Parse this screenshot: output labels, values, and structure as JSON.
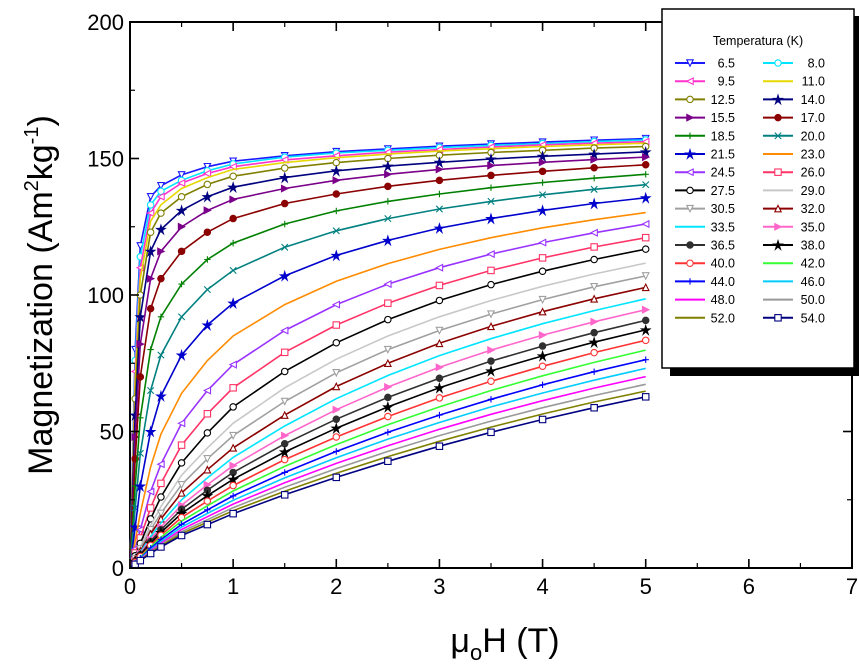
{
  "chart_data": {
    "type": "line",
    "title": "",
    "xlabel": {
      "main": "μ",
      "sub": "o",
      "rest": "H (T)"
    },
    "ylabel": {
      "main": "Magnetization (Am",
      "sup1": "2",
      "mid": "kg",
      "sup2": "-1",
      "end": ")"
    },
    "xlim": [
      0,
      7
    ],
    "ylim": [
      0,
      200
    ],
    "x_ticks": [
      "0",
      "1",
      "2",
      "3",
      "4",
      "5",
      "6",
      "7"
    ],
    "y_ticks": [
      "0",
      "50",
      "100",
      "150",
      "200"
    ],
    "grid": false,
    "legend": {
      "title": "Temperatura (K)",
      "placement": "top-right"
    },
    "x": [
      0,
      0.05,
      0.1,
      0.2,
      0.3,
      0.5,
      0.75,
      1,
      1.5,
      2,
      2.5,
      3,
      3.5,
      4,
      4.5,
      5
    ],
    "series": [
      {
        "name": "6.5",
        "color": "#1a1aff",
        "marker": "triangle-down",
        "values": [
          0,
          80,
          118,
          136,
          140,
          144,
          147,
          149,
          151,
          152.5,
          153.5,
          154.5,
          155.3,
          156,
          156.7,
          157.3
        ]
      },
      {
        "name": "8.0",
        "color": "#00e5ff",
        "marker": "circle",
        "values": [
          0,
          76,
          114,
          133,
          138,
          142,
          145.5,
          148,
          150.5,
          152,
          153,
          154,
          154.8,
          155.5,
          156.2,
          156.8
        ]
      },
      {
        "name": "9.5",
        "color": "#ff33cc",
        "marker": "triangle-left",
        "values": [
          0,
          72,
          110,
          130,
          136,
          141,
          144.5,
          147,
          149.5,
          151,
          152.3,
          153.3,
          154.2,
          155,
          155.6,
          156.2
        ]
      },
      {
        "name": "11.0",
        "color": "#e6d800",
        "marker": "line",
        "values": [
          0,
          68,
          106,
          127,
          133,
          139,
          143,
          146,
          148.5,
          150.3,
          151.6,
          152.7,
          153.6,
          154.4,
          155,
          155.6
        ]
      },
      {
        "name": "12.5",
        "color": "#808000",
        "marker": "circle",
        "values": [
          0,
          62,
          100,
          123,
          130,
          136,
          140.5,
          143.5,
          146.5,
          148.5,
          150,
          151.2,
          152.2,
          153,
          153.8,
          154.4
        ]
      },
      {
        "name": "14.0",
        "color": "#000080",
        "marker": "star",
        "values": [
          0,
          56,
          92,
          116,
          124,
          131,
          136,
          139.5,
          143,
          145.5,
          147.2,
          148.6,
          149.8,
          150.8,
          151.6,
          152.4
        ]
      },
      {
        "name": "15.5",
        "color": "#7a008a",
        "marker": "triangle-right",
        "values": [
          0,
          48,
          82,
          106,
          116,
          125,
          131,
          135,
          139,
          142,
          144.2,
          146,
          147.4,
          148.6,
          149.6,
          150.5
        ]
      },
      {
        "name": "17.0",
        "color": "#8b0000",
        "marker": "circle-half",
        "values": [
          0,
          40,
          70,
          95,
          106,
          116,
          123,
          128,
          133.5,
          137,
          139.8,
          142,
          143.8,
          145.3,
          146.6,
          147.7
        ]
      },
      {
        "name": "18.5",
        "color": "#008000",
        "marker": "plus",
        "values": [
          0,
          30,
          55,
          80,
          92,
          104,
          113,
          119,
          126,
          130.8,
          134.3,
          137,
          139.3,
          141.2,
          142.8,
          144.2
        ]
      },
      {
        "name": "20.0",
        "color": "#008080",
        "marker": "x",
        "values": [
          0,
          22,
          42,
          65,
          78,
          92,
          102,
          109,
          117.5,
          123.5,
          128,
          131.5,
          134.3,
          136.7,
          138.7,
          140.4
        ]
      },
      {
        "name": "21.5",
        "color": "#0000cd",
        "marker": "asterisk",
        "values": [
          0,
          15,
          30,
          50,
          63,
          78,
          89,
          97,
          107,
          114.5,
          120,
          124.5,
          128,
          131,
          133.5,
          135.6
        ]
      },
      {
        "name": "23.0",
        "color": "#ff8c00",
        "marker": "line",
        "values": [
          0,
          10,
          20,
          37,
          49,
          64,
          76,
          85,
          96.5,
          105,
          111.5,
          116.7,
          121,
          124.6,
          127.6,
          130.2
        ]
      },
      {
        "name": "24.5",
        "color": "#9933ff",
        "marker": "triangle-left",
        "values": [
          0,
          7,
          14,
          28,
          38,
          53,
          65,
          74.5,
          87,
          96.5,
          104,
          110,
          115,
          119.2,
          122.8,
          126
        ]
      },
      {
        "name": "26.0",
        "color": "#ff3366",
        "marker": "square-x",
        "values": [
          0,
          5.5,
          11,
          22,
          31,
          45,
          56.5,
          66,
          79,
          89,
          97,
          103.5,
          109,
          113.6,
          117.6,
          121
        ]
      },
      {
        "name": "27.5",
        "color": "#000000",
        "marker": "circle-x",
        "values": [
          0,
          4.5,
          9,
          18,
          26,
          38.5,
          49.5,
          59,
          72,
          82.5,
          91,
          98,
          103.8,
          108.7,
          113,
          116.8
        ]
      },
      {
        "name": "29.0",
        "color": "#c8c8c8",
        "marker": "line",
        "values": [
          0,
          4,
          7.8,
          15.5,
          22.5,
          34,
          44,
          53,
          66,
          76.5,
          85,
          92,
          98,
          103.2,
          107.7,
          111.7
        ]
      },
      {
        "name": "30.5",
        "color": "#a0a0a0",
        "marker": "triangle-down",
        "values": [
          0,
          3.5,
          7,
          14,
          20,
          30.5,
          40,
          48.5,
          61,
          71.5,
          80,
          87,
          93,
          98.3,
          103,
          107
        ]
      },
      {
        "name": "32.0",
        "color": "#8b0000",
        "marker": "triangle-up",
        "values": [
          0,
          3.2,
          6.3,
          12.5,
          18,
          27.5,
          36,
          44,
          56,
          66.5,
          75,
          82.3,
          88.5,
          93.9,
          98.6,
          102.8
        ]
      },
      {
        "name": "33.5",
        "color": "#00e5ff",
        "marker": "line",
        "values": [
          0,
          2.9,
          5.8,
          11.5,
          16.5,
          25,
          33,
          40.5,
          52,
          62,
          70.5,
          77.8,
          84,
          89.5,
          94.3,
          98.6
        ]
      },
      {
        "name": "35.0",
        "color": "#ff66cc",
        "marker": "triangle-right",
        "values": [
          0,
          2.7,
          5.3,
          10.5,
          15,
          23,
          30.5,
          37.5,
          48.5,
          58,
          66.3,
          73.5,
          79.8,
          85.3,
          90.2,
          94.6
        ]
      },
      {
        "name": "36.5",
        "color": "#303030",
        "marker": "circle-half",
        "values": [
          0,
          2.5,
          4.9,
          9.7,
          14,
          21.5,
          28.5,
          35,
          45.5,
          54.5,
          62.5,
          69.5,
          75.8,
          81.3,
          86.2,
          90.7
        ]
      },
      {
        "name": "38.0",
        "color": "#000000",
        "marker": "star",
        "values": [
          0,
          2.3,
          4.6,
          9,
          13,
          20,
          26.5,
          32.5,
          42.5,
          51.2,
          59,
          66,
          72.2,
          77.7,
          82.7,
          87.2
        ]
      },
      {
        "name": "40.0",
        "color": "#ff3333",
        "marker": "circle",
        "values": [
          0,
          2.1,
          4.2,
          8.3,
          12,
          18.5,
          24.5,
          30.2,
          39.7,
          48,
          55.5,
          62.3,
          68.4,
          73.9,
          78.9,
          83.4
        ]
      },
      {
        "name": "42.0",
        "color": "#33ff33",
        "marker": "line",
        "values": [
          0,
          1.95,
          3.9,
          7.7,
          11.2,
          17.2,
          22.8,
          28.2,
          37.2,
          45.2,
          52.5,
          59,
          65,
          70.4,
          75.3,
          79.8
        ]
      },
      {
        "name": "44.0",
        "color": "#0000ff",
        "marker": "plus",
        "values": [
          0,
          1.8,
          3.6,
          7.2,
          10.4,
          16,
          21.3,
          26.4,
          35,
          42.7,
          49.7,
          56,
          61.8,
          67.1,
          71.9,
          76.3
        ]
      },
      {
        "name": "46.0",
        "color": "#00ccff",
        "marker": "line",
        "values": [
          0,
          1.7,
          3.4,
          6.7,
          9.7,
          15,
          20,
          24.8,
          33,
          40.4,
          47.2,
          53.3,
          59,
          64.1,
          68.8,
          73.1
        ]
      },
      {
        "name": "48.0",
        "color": "#ff00ff",
        "marker": "line",
        "values": [
          0,
          1.6,
          3.2,
          6.3,
          9.1,
          14.1,
          18.8,
          23.4,
          31.2,
          38.3,
          44.8,
          50.8,
          56.3,
          61.3,
          65.9,
          70.1
        ]
      },
      {
        "name": "50.0",
        "color": "#999999",
        "marker": "line",
        "values": [
          0,
          1.5,
          3,
          5.9,
          8.6,
          13.3,
          17.7,
          22.1,
          29.6,
          36.4,
          42.7,
          48.5,
          53.8,
          58.7,
          63.2,
          67.3
        ]
      },
      {
        "name": "52.0",
        "color": "#808000",
        "marker": "line",
        "values": [
          0,
          1.4,
          2.85,
          5.6,
          8.1,
          12.6,
          16.8,
          21,
          28.1,
          34.7,
          40.8,
          46.4,
          51.6,
          56.4,
          60.8,
          64.8
        ]
      },
      {
        "name": "54.0",
        "color": "#000080",
        "marker": "square",
        "values": [
          0,
          1.35,
          2.7,
          5.3,
          7.7,
          11.9,
          15.9,
          19.9,
          26.8,
          33.2,
          39.1,
          44.6,
          49.7,
          54.4,
          58.7,
          62.7
        ]
      }
    ]
  }
}
